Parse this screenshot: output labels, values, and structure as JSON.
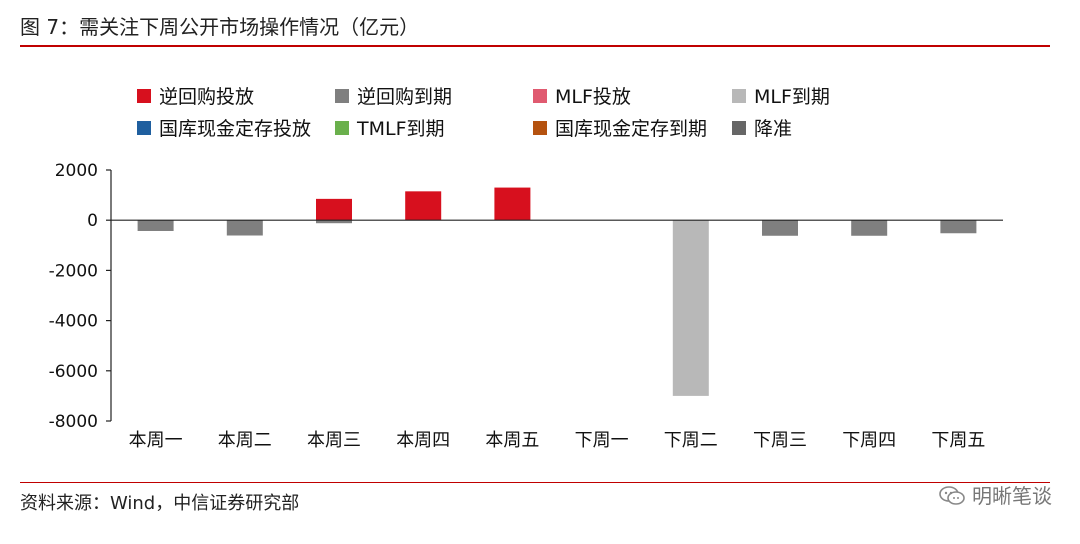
{
  "header": {
    "title": "图 7：需关注下周公开市场操作情况（亿元）"
  },
  "footer": {
    "source": "资料来源：Wind，中信证券研究部",
    "watermark": "明晰笔谈",
    "watermark_icon": "wechat-icon"
  },
  "chart_data": {
    "type": "bar",
    "title": "",
    "xlabel": "",
    "ylabel": "",
    "ylim": [
      -8000,
      2000
    ],
    "yticks": [
      2000,
      0,
      -2000,
      -4000,
      -6000,
      -8000
    ],
    "categories": [
      "本周一",
      "本周二",
      "本周三",
      "本周四",
      "本周五",
      "下周一",
      "下周二",
      "下周三",
      "下周四",
      "下周五"
    ],
    "legend_position": "top",
    "series": [
      {
        "name": "逆回购投放",
        "color": "#d7101e",
        "values": [
          0,
          0,
          850,
          1150,
          1300,
          0,
          0,
          0,
          0,
          0
        ]
      },
      {
        "name": "逆回购到期",
        "color": "#7f7f7f",
        "values": [
          -430,
          -610,
          -120,
          0,
          0,
          0,
          0,
          -620,
          -620,
          -520
        ]
      },
      {
        "name": "MLF投放",
        "color": "#e05a70",
        "values": [
          0,
          0,
          0,
          0,
          0,
          0,
          0,
          0,
          0,
          0
        ]
      },
      {
        "name": "MLF到期",
        "color": "#b8b8b8",
        "values": [
          0,
          0,
          0,
          0,
          0,
          0,
          -7000,
          0,
          0,
          0
        ]
      },
      {
        "name": "国库现金定存投放",
        "color": "#1f5f9f",
        "values": [
          0,
          0,
          0,
          0,
          0,
          0,
          0,
          0,
          0,
          0
        ]
      },
      {
        "name": "TMLF到期",
        "color": "#6ab04c",
        "values": [
          0,
          0,
          0,
          0,
          0,
          0,
          0,
          0,
          0,
          0
        ]
      },
      {
        "name": "国库现金定存到期",
        "color": "#b5520f",
        "values": [
          0,
          0,
          0,
          0,
          0,
          0,
          0,
          0,
          0,
          0
        ]
      },
      {
        "name": "降准",
        "color": "#666666",
        "values": [
          0,
          0,
          0,
          0,
          0,
          0,
          0,
          0,
          0,
          0
        ]
      }
    ]
  }
}
